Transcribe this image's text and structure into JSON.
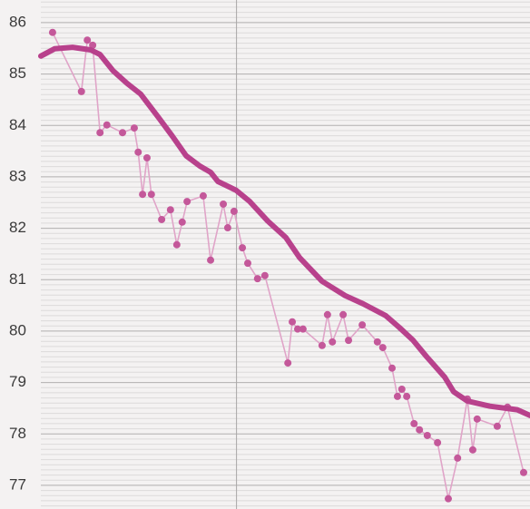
{
  "chart_data": {
    "type": "line",
    "xlim": [
      0,
      100
    ],
    "ylim": [
      76.54,
      86.44
    ],
    "yticks": [
      77,
      78,
      79,
      80,
      81,
      82,
      83,
      84,
      85,
      86
    ],
    "minor_divisions": 10,
    "grid": true,
    "vline": 40,
    "series": [
      {
        "style": "points",
        "color": "#c4589a",
        "line_color": "#e0a4c8",
        "x": [
          2.4,
          8.3,
          9.5,
          10.6,
          12.1,
          13.5,
          16.7,
          19.1,
          19.9,
          20.8,
          21.7,
          22.6,
          24.7,
          26.5,
          27.8,
          28.9,
          29.9,
          33.2,
          34.7,
          37.3,
          38.2,
          39.5,
          41.2,
          42.3,
          44.3,
          45.8,
          50.5,
          51.4,
          52.5,
          53.6,
          57.5,
          58.6,
          59.6,
          61.8,
          62.9,
          65.7,
          68.8,
          69.9,
          71.8,
          72.9,
          73.8,
          74.8,
          76.3,
          77.4,
          79.0,
          81.1,
          83.3,
          85.2,
          87.2,
          88.3,
          89.2,
          93.3,
          95.4,
          98.7
        ],
        "values": [
          85.81,
          84.66,
          85.66,
          85.56,
          83.86,
          84.01,
          83.86,
          83.95,
          83.48,
          82.66,
          83.37,
          82.66,
          82.17,
          82.36,
          81.68,
          82.12,
          82.52,
          82.63,
          81.38,
          82.47,
          82.01,
          82.33,
          81.62,
          81.32,
          81.02,
          81.08,
          79.38,
          80.18,
          80.04,
          80.04,
          79.72,
          80.32,
          79.79,
          80.32,
          79.82,
          80.12,
          79.79,
          79.68,
          79.28,
          78.73,
          78.87,
          78.73,
          78.2,
          78.08,
          77.97,
          77.83,
          76.74,
          77.53,
          78.68,
          77.69,
          78.29,
          78.15,
          78.52,
          77.25
        ]
      },
      {
        "style": "trend",
        "color": "#b8418c",
        "x": [
          0,
          2.8,
          6.5,
          10.2,
          12.1,
          14.8,
          17.6,
          20.4,
          24.1,
          26.9,
          29.7,
          32.5,
          34.7,
          36.2,
          39.9,
          42.7,
          46.4,
          50.1,
          52.9,
          57.5,
          62.2,
          65.9,
          70.5,
          73.3,
          76.1,
          78.8,
          82.6,
          84.4,
          87.2,
          91.8,
          97.4,
          100
        ],
        "values": [
          85.35,
          85.49,
          85.52,
          85.47,
          85.38,
          85.06,
          84.82,
          84.61,
          84.15,
          83.79,
          83.41,
          83.21,
          83.09,
          82.91,
          82.74,
          82.52,
          82.14,
          81.82,
          81.43,
          80.97,
          80.69,
          80.53,
          80.3,
          80.07,
          79.82,
          79.51,
          79.1,
          78.82,
          78.64,
          78.54,
          78.47,
          78.36
        ]
      }
    ]
  }
}
